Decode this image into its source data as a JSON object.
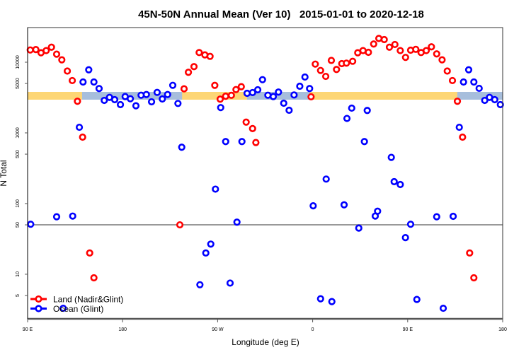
{
  "chart_data": {
    "type": "scatter",
    "title": "45N-50N Annual Mean (Ver 10)   2015-01-01 to 2020-12-18",
    "xlabel": "Longitude (deg E)",
    "ylabel": "N Total",
    "xlim": [
      90,
      540
    ],
    "ylim": [
      2.34,
      30900
    ],
    "y_scale": "log",
    "x_ticks": [
      {
        "value": 90,
        "label": "90 E"
      },
      {
        "value": 180,
        "label": "180"
      },
      {
        "value": 270,
        "label": "90 W"
      },
      {
        "value": 360,
        "label": "0"
      },
      {
        "value": 450,
        "label": "90 E"
      },
      {
        "value": 540,
        "label": "180"
      }
    ],
    "y_ticks": [
      {
        "value": 5,
        "label": "5"
      },
      {
        "value": 10,
        "label": "10"
      },
      {
        "value": 50,
        "label": "50"
      },
      {
        "value": 100,
        "label": "100"
      },
      {
        "value": 500,
        "label": "500"
      },
      {
        "value": 1000,
        "label": "1000"
      },
      {
        "value": 5000,
        "label": "5000"
      },
      {
        "value": 10000,
        "label": "10000"
      }
    ],
    "reference_line": {
      "y": 50,
      "color": "#999999"
    },
    "band": {
      "y_range": [
        2950,
        3800
      ],
      "land_color": "#FDD675",
      "ocean_color": "#A7BEDC",
      "ocean_segments": [
        [
          141.6,
          236.3
        ],
        [
          297.9,
          357.1
        ],
        [
          497,
          540
        ]
      ]
    },
    "legend": {
      "position": "bottom-left"
    },
    "series": [
      {
        "name": "Land (Nadir&Glint)",
        "color": "#FF0000",
        "x": [
          92.5,
          97.8,
          102.7,
          107.6,
          112.6,
          117.5,
          122.4,
          127.6,
          132.3,
          137.2,
          142.1,
          148.8,
          152.8,
          234.2,
          238.2,
          242.3,
          247.6,
          252.5,
          257.9,
          262.8,
          267.3,
          272.4,
          277.6,
          283.0,
          287.4,
          292.4,
          297.0,
          303.1,
          306.2,
          358.5,
          362.5,
          367.5,
          372.4,
          377.7,
          382.6,
          387.6,
          392.0,
          397.9,
          402.7,
          407.7,
          412.8,
          417.8,
          422.7,
          427.8,
          432.7,
          437.9,
          443.0,
          448.0,
          452.8,
          457.7,
          462.7,
          467.6,
          472.5,
          477.5,
          482.6,
          487.5,
          492.4,
          497.1,
          502.0,
          508.7,
          512.7
        ],
        "y": [
          14900,
          15100,
          13600,
          14600,
          16300,
          13000,
          10800,
          7500,
          5500,
          2800,
          870,
          20,
          8.9,
          50,
          4200,
          7200,
          8650,
          13700,
          12700,
          12100,
          4700,
          3000,
          3300,
          3400,
          4100,
          4500,
          1420,
          1150,
          730,
          3240,
          9400,
          7640,
          6300,
          10600,
          7900,
          9550,
          9700,
          10300,
          13600,
          14600,
          13800,
          18100,
          21700,
          20900,
          16300,
          17800,
          14600,
          11700,
          14800,
          15200,
          13700,
          14600,
          16500,
          13100,
          10800,
          7500,
          5500,
          2800,
          870,
          20,
          8.9
        ]
      },
      {
        "name": "Ocean (Glint)",
        "color": "#0000FF",
        "x": [
          92.9,
          117.5,
          132.7,
          123.7,
          139.0,
          142.5,
          147.9,
          152.8,
          157.7,
          162.6,
          167.6,
          172.5,
          177.9,
          182.4,
          187.3,
          192.6,
          197.5,
          202.5,
          207.4,
          212.7,
          217.6,
          222.6,
          227.5,
          232.4,
          236.0,
          253.2,
          258.8,
          263.5,
          267.9,
          272.9,
          277.6,
          281.8,
          288.3,
          293.0,
          297.9,
          303.1,
          308.0,
          312.5,
          317.6,
          322.7,
          327.6,
          332.6,
          337.7,
          342.4,
          347.8,
          352.7,
          357.1,
          360.5,
          367.5,
          372.8,
          378.2,
          389.8,
          392.5,
          397.0,
          403.7,
          409.0,
          411.7,
          419.3,
          421.5,
          434.5,
          437.2,
          443.0,
          447.9,
          452.8,
          458.7,
          477.5,
          483.7,
          493.1,
          498.9,
          502.9,
          507.8,
          512.7,
          517.7,
          523.0,
          527.5,
          532.5,
          537.8
        ],
        "y": [
          51,
          65,
          66.5,
          3.3,
          1200,
          5250,
          7800,
          5250,
          4240,
          2880,
          3180,
          2950,
          2510,
          3260,
          3040,
          2420,
          3410,
          3490,
          2750,
          3740,
          3020,
          3490,
          4710,
          2610,
          627,
          7.1,
          20,
          26.7,
          160,
          2280,
          753,
          7.5,
          54.6,
          753,
          3630,
          3720,
          4070,
          5660,
          3410,
          3260,
          3780,
          2630,
          2090,
          3440,
          4570,
          6170,
          4240,
          93,
          4.5,
          222,
          4.1,
          96,
          1600,
          2240,
          45,
          753,
          2075,
          66.5,
          78,
          450,
          204,
          186,
          33,
          51,
          4.4,
          65,
          3.3,
          66,
          1200,
          5250,
          7800,
          5250,
          4270,
          2880,
          3180,
          2950,
          2510
        ]
      }
    ]
  }
}
